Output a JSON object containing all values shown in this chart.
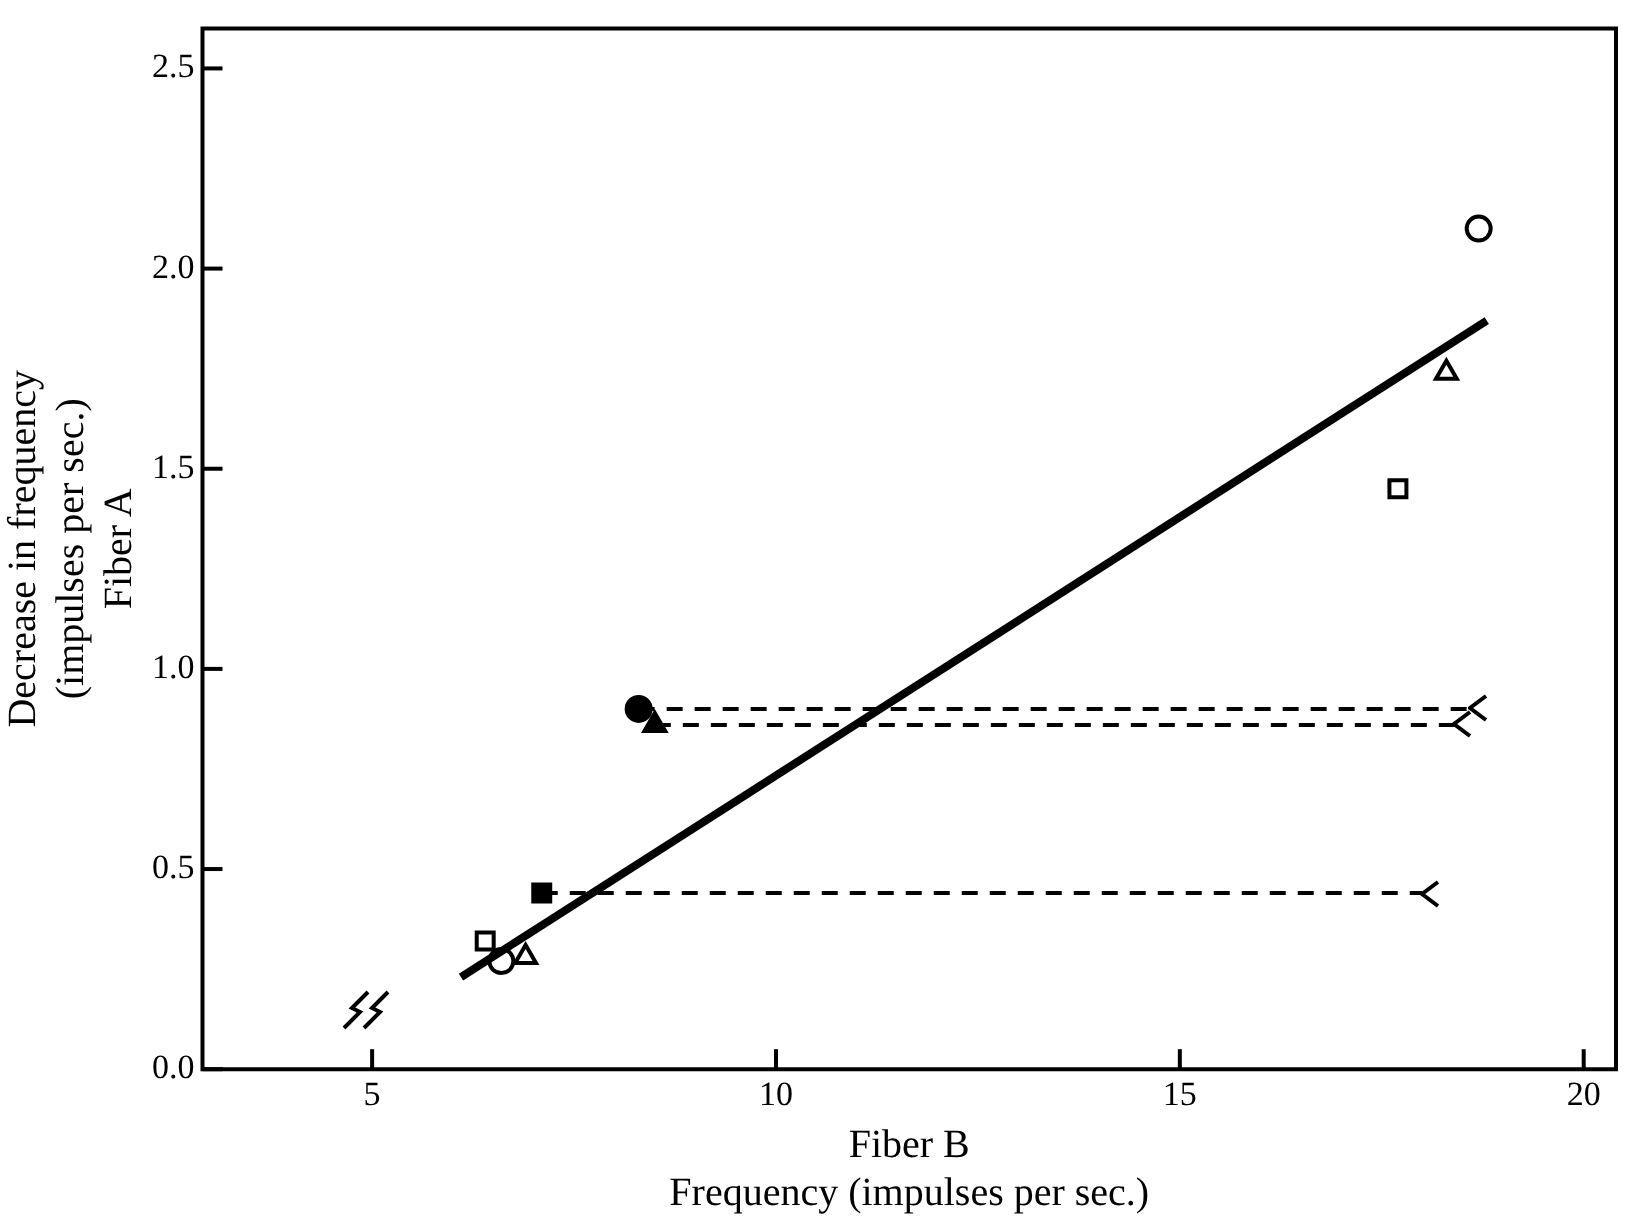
{
  "chart_data": {
    "type": "scatter",
    "xlabel": "Fiber B\nFrequency (impulses per sec.)",
    "ylabel": "Decrease in frequency\n(impulses per sec.)\nFiber A",
    "xlim": [
      2.9,
      20.4
    ],
    "xticks": [
      5,
      10,
      15,
      20
    ],
    "ylim": [
      0,
      2.6
    ],
    "yticks": [
      {
        "value": 0,
        "label": "0.0"
      },
      {
        "value": 0.5,
        "label": "0.5"
      },
      {
        "value": 1,
        "label": "1.0"
      },
      {
        "value": 1.5,
        "label": "1.5"
      },
      {
        "value": 2,
        "label": "2.0"
      },
      {
        "value": 2.5,
        "label": "2.5"
      }
    ],
    "grid": false,
    "legend": false,
    "series": [
      {
        "type": "line",
        "color": "#000000",
        "marker": "circle",
        "line_style": "dashed",
        "x": [
          8.3,
          18.6
        ],
        "values": [
          0.9,
          0.9
        ]
      },
      {
        "type": "line",
        "color": "#000000",
        "marker": "triangle",
        "line_style": "dashed",
        "x": [
          8.5,
          18.4
        ],
        "values": [
          0.86,
          0.86
        ]
      },
      {
        "type": "line",
        "color": "#000000",
        "marker": "square",
        "line_style": "dashed",
        "x": [
          7.1,
          18.0
        ],
        "values": [
          0.44,
          0.44
        ]
      },
      {
        "type": "line",
        "color": "#000000",
        "marker": "none",
        "line_style": "solid",
        "x": [
          6.1,
          18.8
        ],
        "values": [
          0.23,
          1.87
        ]
      },
      {
        "color": "#000000",
        "marker": "circle",
        "x": [
          6.6,
          18.7
        ],
        "values": [
          0.27,
          2.1
        ]
      },
      {
        "color": "#000000",
        "marker": "triangle",
        "x": [
          6.9,
          18.3
        ],
        "values": [
          0.28,
          1.74
        ]
      },
      {
        "color": "#000000",
        "marker": "square",
        "x": [
          6.4,
          17.7
        ],
        "values": [
          0.32,
          1.45
        ]
      }
    ]
  }
}
